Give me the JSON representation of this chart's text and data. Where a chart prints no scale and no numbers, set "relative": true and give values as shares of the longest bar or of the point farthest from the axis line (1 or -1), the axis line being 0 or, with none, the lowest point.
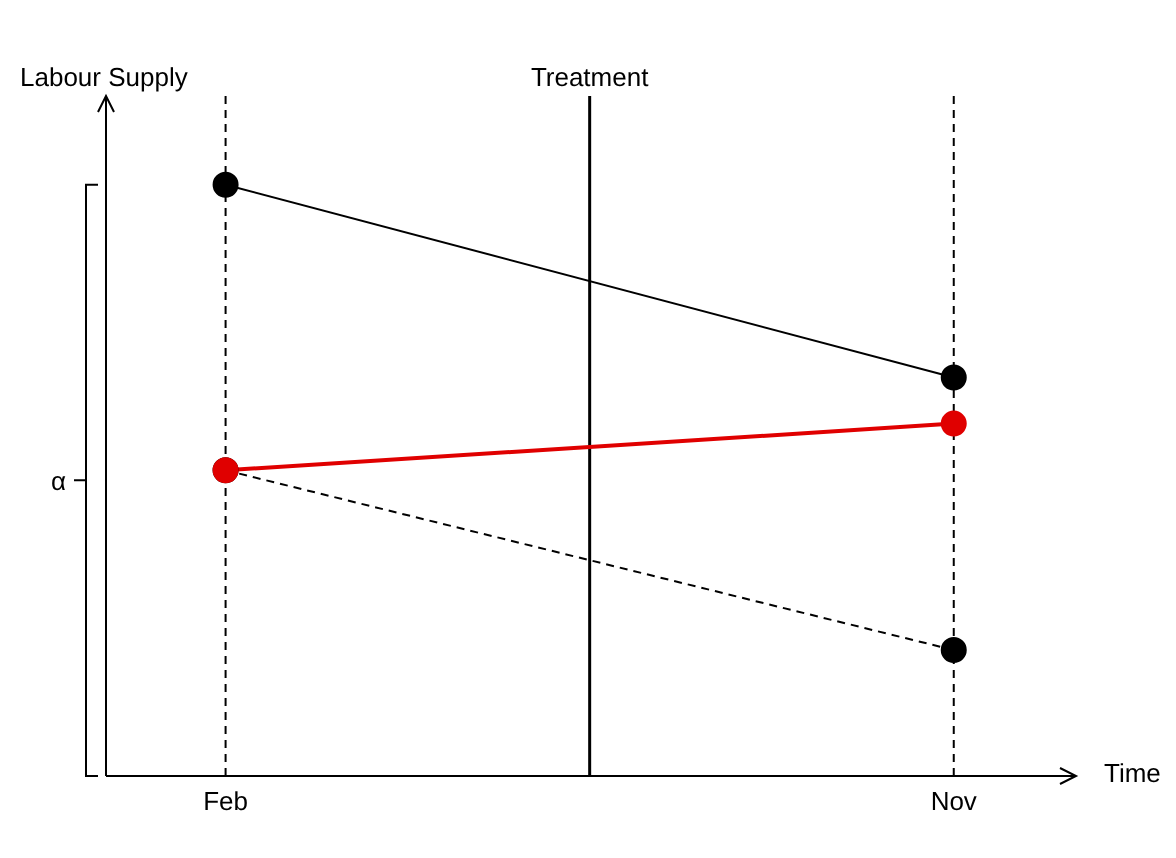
{
  "chart_data": {
    "type": "line",
    "xlabel": "Time",
    "ylabel": "Labour Supply",
    "relative": true,
    "x": [
      "--02-15",
      "--11-15"
    ],
    "xlim": [
      "--01-01",
      "--12-31"
    ],
    "xticks": [
      {
        "value": "--02-15",
        "label": "Feb"
      },
      {
        "value": "--11-15",
        "label": "Nov"
      }
    ],
    "series": [
      {
        "color": "#000000",
        "values": [
          1,
          0.674
        ],
        "line_style": "solid"
      },
      {
        "color": "#e00000",
        "values": [
          0.517,
          0.596
        ],
        "line_style": "solid"
      },
      {
        "color": "#000000",
        "values": [
          0.517,
          0.213
        ],
        "line_style": "dashed"
      }
    ],
    "ref_lines": [
      {
        "axis": "x",
        "value": "--07-01",
        "label": "Treatment",
        "color": "#000000",
        "line_style": "solid"
      },
      {
        "axis": "x",
        "value": "--02-15",
        "color": "#000000",
        "line_style": "dashed"
      },
      {
        "axis": "x",
        "value": "--11-15",
        "color": "#000000",
        "line_style": "dashed"
      }
    ],
    "annotations": [
      "α"
    ],
    "marker": "circle",
    "grid": false
  }
}
